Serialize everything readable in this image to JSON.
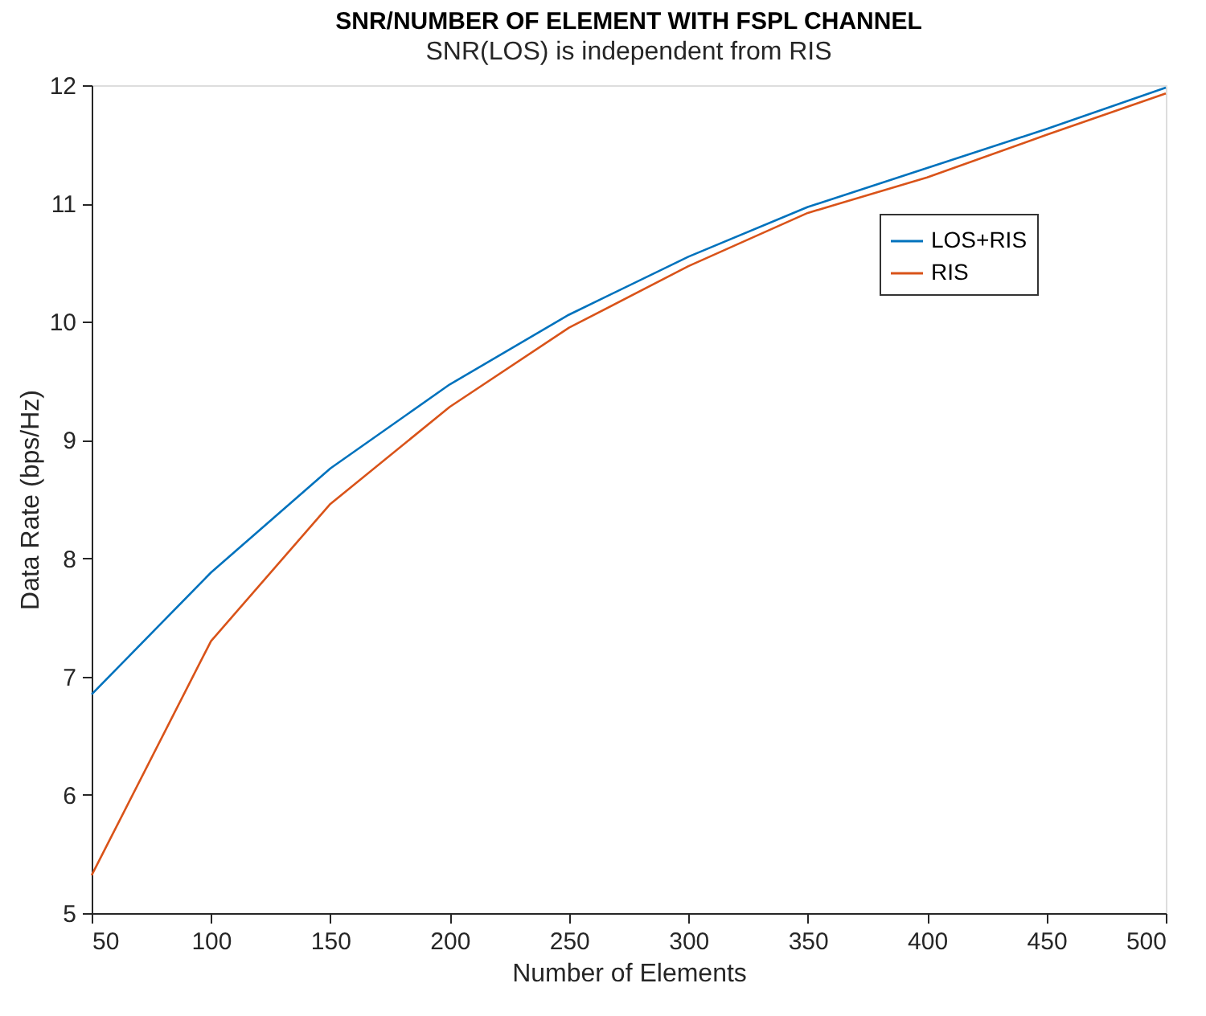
{
  "chart_data": {
    "type": "line",
    "title": "SNR/NUMBER OF ELEMENT WITH FSPL CHANNEL",
    "subtitle": "SNR(LOS) is independent from RIS",
    "xlabel": "Number of Elements",
    "ylabel": "Data Rate (bps/Hz)",
    "x": [
      50,
      100,
      150,
      200,
      250,
      300,
      350,
      400,
      450,
      500
    ],
    "series": [
      {
        "name": "LOS+RIS",
        "color": "#0072bd",
        "values": [
          6.85,
          7.88,
          8.76,
          9.47,
          10.06,
          10.55,
          10.97,
          11.3,
          11.63,
          11.98
        ]
      },
      {
        "name": "RIS",
        "color": "#d95319",
        "values": [
          5.32,
          7.3,
          8.46,
          9.28,
          9.95,
          10.47,
          10.92,
          11.22,
          11.58,
          11.93
        ]
      }
    ],
    "xlim": [
      50,
      500
    ],
    "xticks": [
      50,
      100,
      150,
      200,
      250,
      300,
      350,
      400,
      450,
      500
    ],
    "ylim": [
      5,
      12
    ],
    "yticks": [
      5,
      6,
      7,
      8,
      9,
      10,
      11,
      12
    ],
    "grid": false,
    "legend": "top right",
    "line_style": "solid",
    "marker": "none"
  }
}
